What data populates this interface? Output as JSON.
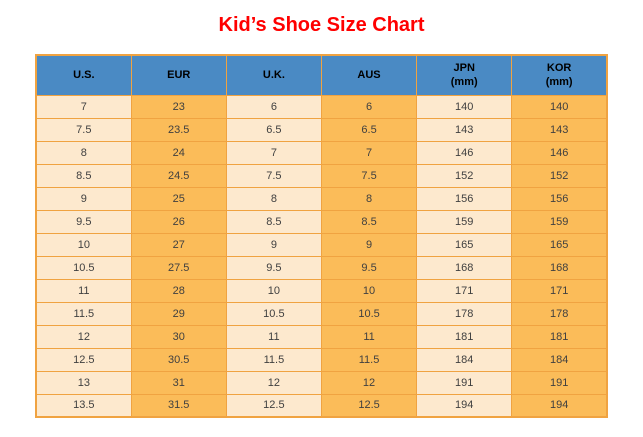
{
  "title": "Kid’s Shoe Size Chart",
  "colors": {
    "title": "#ff0000",
    "header_bg": "#4a8ac4",
    "header_text": "#000000",
    "col_light": "#fde9ce",
    "col_orange": "#fbbc59",
    "border": "#f0a341",
    "cell_text": "#404040"
  },
  "chart_data": {
    "type": "table",
    "title": "Kid’s Shoe Size Chart",
    "columns": [
      "U.S.",
      "EUR",
      "U.K.",
      "AUS",
      "JPN (mm)",
      "KOR (mm)"
    ],
    "header_lines": [
      [
        "U.S."
      ],
      [
        "EUR"
      ],
      [
        "U.K."
      ],
      [
        "AUS"
      ],
      [
        "JPN",
        "(mm)"
      ],
      [
        "KOR",
        "(mm)"
      ]
    ],
    "rows": [
      [
        "7",
        "23",
        "6",
        "6",
        "140",
        "140"
      ],
      [
        "7.5",
        "23.5",
        "6.5",
        "6.5",
        "143",
        "143"
      ],
      [
        "8",
        "24",
        "7",
        "7",
        "146",
        "146"
      ],
      [
        "8.5",
        "24.5",
        "7.5",
        "7.5",
        "152",
        "152"
      ],
      [
        "9",
        "25",
        "8",
        "8",
        "156",
        "156"
      ],
      [
        "9.5",
        "26",
        "8.5",
        "8.5",
        "159",
        "159"
      ],
      [
        "10",
        "27",
        "9",
        "9",
        "165",
        "165"
      ],
      [
        "10.5",
        "27.5",
        "9.5",
        "9.5",
        "168",
        "168"
      ],
      [
        "11",
        "28",
        "10",
        "10",
        "171",
        "171"
      ],
      [
        "11.5",
        "29",
        "10.5",
        "10.5",
        "178",
        "178"
      ],
      [
        "12",
        "30",
        "11",
        "11",
        "181",
        "181"
      ],
      [
        "12.5",
        "30.5",
        "11.5",
        "11.5",
        "184",
        "184"
      ],
      [
        "13",
        "31",
        "12",
        "12",
        "191",
        "191"
      ],
      [
        "13.5",
        "31.5",
        "12.5",
        "12.5",
        "194",
        "194"
      ]
    ]
  }
}
